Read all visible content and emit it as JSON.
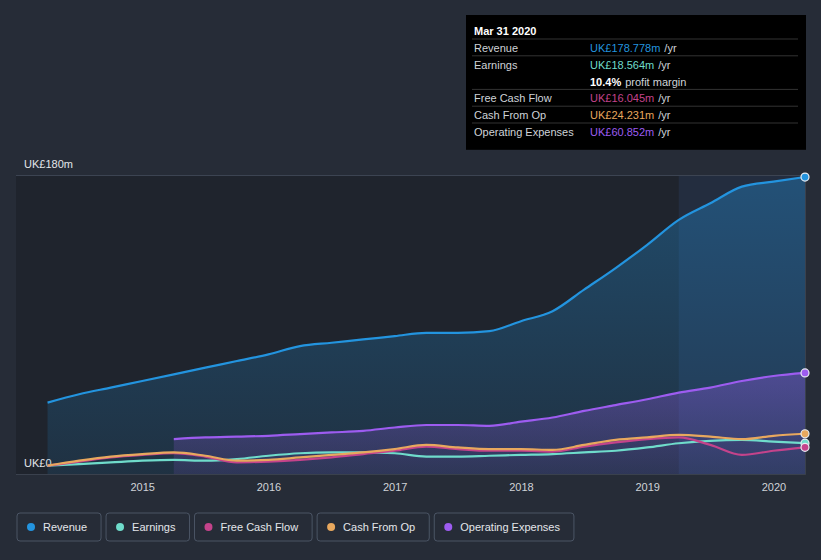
{
  "chart_data": {
    "type": "line",
    "x": [
      2014.25,
      2014.5,
      2014.75,
      2015,
      2015.25,
      2015.5,
      2015.75,
      2016,
      2016.25,
      2016.5,
      2016.75,
      2017,
      2017.25,
      2017.5,
      2017.75,
      2018,
      2018.25,
      2018.5,
      2018.75,
      2019,
      2019.25,
      2019.5,
      2019.75,
      2020,
      2020.25
    ],
    "series": [
      {
        "name": "Revenue",
        "color": "#2394df",
        "type": "area",
        "values": [
          43,
          48,
          52,
          56,
          60,
          64,
          68,
          72,
          77,
          79,
          81,
          83,
          85,
          85,
          86,
          92,
          98,
          111,
          124,
          138,
          153,
          163,
          173,
          176,
          178.778
        ]
      },
      {
        "name": "Earnings",
        "color": "#6fdccb",
        "type": "line",
        "values": [
          5,
          6,
          7,
          8,
          8.5,
          8,
          9,
          11,
          12.5,
          13,
          13,
          12.5,
          10.5,
          10.5,
          11,
          11.5,
          12,
          13,
          14,
          16,
          18.5,
          20,
          20.5,
          19.5,
          18.564
        ]
      },
      {
        "name": "Free Cash Flow",
        "color": "#c4438b",
        "type": "line",
        "values": [
          5,
          7.5,
          10,
          11.5,
          12.5,
          10.5,
          7,
          7.5,
          8.5,
          10,
          12,
          14,
          16.5,
          15,
          14,
          14,
          13.5,
          16.5,
          19,
          21,
          22,
          17.5,
          11.5,
          14,
          16.045
        ]
      },
      {
        "name": "Cash From Op",
        "color": "#e8a85e",
        "type": "line",
        "values": [
          5,
          8,
          10.5,
          12,
          13,
          11,
          8,
          8.5,
          10,
          11.5,
          13,
          15,
          17.5,
          16,
          15,
          15,
          14.5,
          17.5,
          20.5,
          22,
          23.5,
          22.5,
          21,
          23,
          24.231
        ]
      },
      {
        "name": "Operating Expenses",
        "color": "#9d5cf0",
        "type": "area",
        "values": [
          null,
          null,
          null,
          null,
          21,
          22,
          22.5,
          23,
          24,
          25,
          26,
          28,
          29.5,
          29.5,
          29,
          31.5,
          34,
          38,
          41.5,
          45,
          49,
          52,
          56,
          59,
          60.852
        ]
      }
    ],
    "xlim": [
      2014,
      2020.25
    ],
    "xticks": [
      2015,
      2016,
      2017,
      2018,
      2019,
      2020
    ],
    "ylim": [
      0,
      180
    ],
    "yticks": [
      {
        "value": 0,
        "label": "UK£0"
      },
      {
        "value": 180,
        "label": "UK£180m"
      }
    ],
    "grid": true,
    "legend": "bottom-left",
    "annotations": [
      {
        "title": "Mar 31 2020",
        "rows": [
          {
            "label": "Revenue",
            "value": "UK£178.778m",
            "unit": "/yr"
          },
          {
            "label": "Earnings",
            "value": "UK£18.564m",
            "unit": "/yr"
          },
          {
            "value": "10.4%",
            "unit": "profit margin"
          },
          {
            "label": "Free Cash Flow",
            "value": "UK£16.045m",
            "unit": "/yr"
          },
          {
            "label": "Cash From Op",
            "value": "UK£24.231m",
            "unit": "/yr"
          },
          {
            "label": "Operating Expenses",
            "value": "UK£60.852m",
            "unit": "/yr"
          }
        ]
      }
    ]
  }
}
